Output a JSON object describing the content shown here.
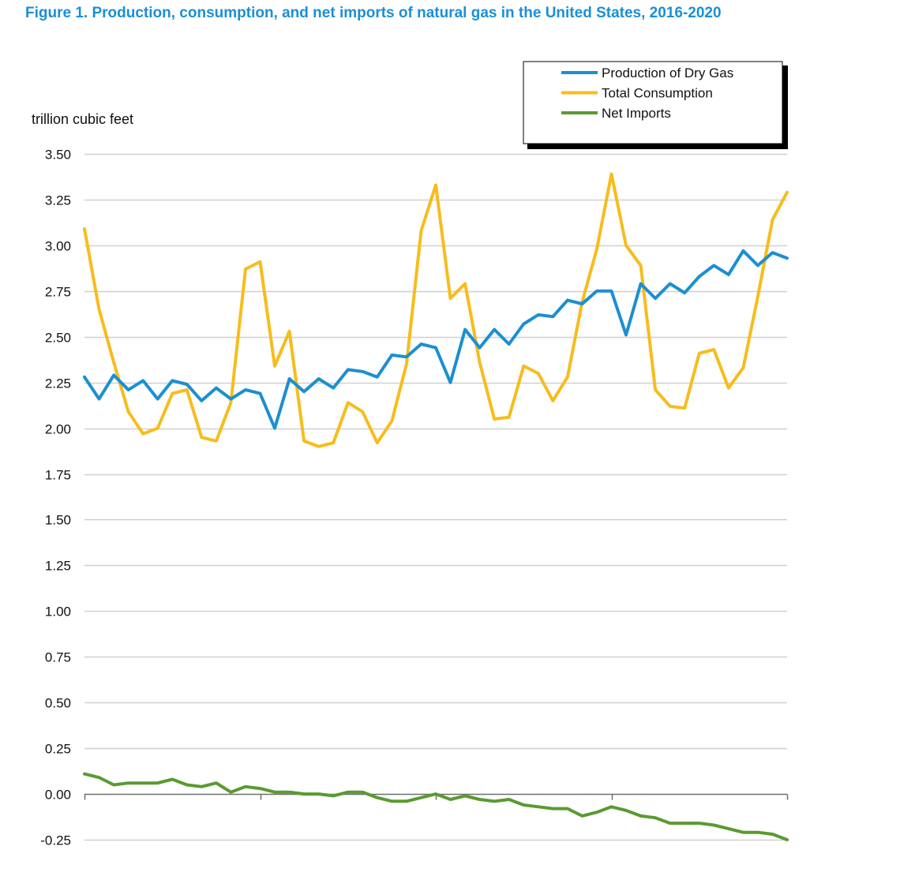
{
  "title": "Figure 1.  Production, consumption, and net imports of natural gas in the United States, 2016-2020",
  "chart_data": {
    "type": "line",
    "ylabel": "trillion cubic feet",
    "ylim": [
      -0.25,
      3.5
    ],
    "yticks": [
      -0.25,
      0.0,
      0.25,
      0.5,
      0.75,
      1.0,
      1.25,
      1.5,
      1.75,
      2.0,
      2.25,
      2.5,
      2.75,
      3.0,
      3.25,
      3.5
    ],
    "ytick_labels": [
      "-0.25",
      "0.00",
      "0.25",
      "0.50",
      "0.75",
      "1.00",
      "1.25",
      "1.50",
      "1.75",
      "2.00",
      "2.25",
      "2.50",
      "2.75",
      "3.00",
      "3.25",
      "3.50"
    ],
    "grid": true,
    "legend_position": "top-right",
    "x_count": 49,
    "series": [
      {
        "name": "Production of Dry Gas",
        "color": "#1b8fd2",
        "values": [
          2.28,
          2.16,
          2.29,
          2.21,
          2.26,
          2.16,
          2.26,
          2.24,
          2.15,
          2.22,
          2.16,
          2.21,
          2.19,
          2.0,
          2.27,
          2.2,
          2.27,
          2.22,
          2.32,
          2.31,
          2.28,
          2.4,
          2.39,
          2.46,
          2.44,
          2.25,
          2.54,
          2.44,
          2.54,
          2.46,
          2.57,
          2.62,
          2.61,
          2.7,
          2.68,
          2.75,
          2.75,
          2.51,
          2.79,
          2.71,
          2.79,
          2.74,
          2.83,
          2.89,
          2.84,
          2.97,
          2.89,
          2.96,
          2.93
        ]
      },
      {
        "name": "Total Consumption",
        "color": "#f7bc1d",
        "values": [
          3.09,
          2.65,
          2.36,
          2.09,
          1.97,
          2.0,
          2.19,
          2.21,
          1.95,
          1.93,
          2.14,
          2.87,
          2.91,
          2.34,
          2.53,
          1.93,
          1.9,
          1.92,
          2.14,
          2.09,
          1.92,
          2.04,
          2.35,
          3.08,
          3.33,
          2.71,
          2.79,
          2.36,
          2.05,
          2.06,
          2.34,
          2.3,
          2.15,
          2.28,
          2.69,
          2.98,
          3.39,
          3.0,
          2.89,
          2.21,
          2.12,
          2.11,
          2.41,
          2.43,
          2.22,
          2.33,
          2.72,
          3.14,
          3.29
        ]
      },
      {
        "name": "Net Imports",
        "color": "#5a9a31",
        "values": [
          0.11,
          0.09,
          0.05,
          0.06,
          0.06,
          0.06,
          0.08,
          0.05,
          0.04,
          0.06,
          0.01,
          0.04,
          0.03,
          0.01,
          0.01,
          0.0,
          0.0,
          -0.01,
          0.01,
          0.01,
          -0.02,
          -0.04,
          -0.04,
          -0.02,
          0.0,
          -0.03,
          -0.01,
          -0.03,
          -0.04,
          -0.03,
          -0.06,
          -0.07,
          -0.08,
          -0.08,
          -0.12,
          -0.1,
          -0.07,
          -0.09,
          -0.12,
          -0.13,
          -0.16,
          -0.16,
          -0.16,
          -0.17,
          -0.19,
          -0.21,
          -0.21,
          -0.22,
          -0.25
        ]
      }
    ]
  }
}
